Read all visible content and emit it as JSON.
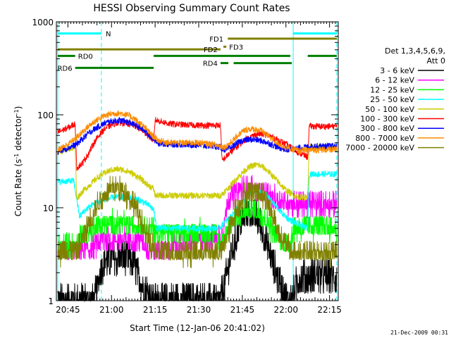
{
  "chart_data": {
    "type": "line",
    "title": "HESSI Observing Summary Count Rates",
    "xlabel": "Start Time (12-Jan-06 20:41:02)",
    "ylabel_main": "Count Rate (s",
    "ylabel_sup1": "-1",
    "ylabel_mid": " detector",
    "ylabel_sup2": "-1",
    "ylabel_end": ")",
    "yscale": "log",
    "ylim": [
      1,
      1000
    ],
    "xlim_min": [
      41.03,
      138.0
    ],
    "x_tick_labels": [
      "20:45",
      "21:00",
      "21:15",
      "21:30",
      "21:45",
      "22:00",
      "22:15"
    ],
    "x_tick_values_min": [
      45,
      60,
      75,
      90,
      105,
      120,
      135
    ],
    "y_tick_labels": [
      "1",
      "10",
      "100",
      "1000"
    ],
    "y_tick_values": [
      1,
      10,
      100,
      1000
    ],
    "footer_date": "21-Dec-2009 00:31",
    "legend": {
      "header1": "Det 1,3,4,5,6,9,",
      "header2": "Att 0",
      "entries": [
        {
          "label": "3 - 6 keV",
          "color": "#000000"
        },
        {
          "label": "6 - 12 keV",
          "color": "#ff00ff"
        },
        {
          "label": "12 - 25 keV",
          "color": "#00ff00"
        },
        {
          "label": "25 - 50 keV",
          "color": "#00ffff"
        },
        {
          "label": "50 - 100 keV",
          "color": "#cccc00"
        },
        {
          "label": "100 - 300 keV",
          "color": "#ff0000"
        },
        {
          "label": "300 - 800 keV",
          "color": "#0000ff"
        },
        {
          "label": "800 - 7000 keV",
          "color": "#ff8c00"
        },
        {
          "label": "7000 - 20000 keV",
          "color": "#808000"
        }
      ]
    },
    "flags": [
      {
        "label": "N",
        "color": "#00ffff",
        "y_level": 750,
        "segments": [
          [
            41.5,
            56.5
          ],
          [
            122.5,
            137.5
          ]
        ],
        "label_at": 57.5,
        "label_side": "right"
      },
      {
        "label": "FD1",
        "color": "#808000",
        "y_level": 660,
        "segments": [
          [
            100,
            137.5
          ]
        ],
        "label_at": 99,
        "label_side": "left"
      },
      {
        "label": "FD2",
        "color": "#808000",
        "y_level": 505,
        "segments": [
          [
            41.5,
            97.5
          ]
        ],
        "label_at": 97,
        "label_side": "left"
      },
      {
        "label": "FD3",
        "color": "#808000",
        "y_level": 540,
        "segments": [
          [
            98.5,
            99.5
          ]
        ],
        "label_at": 100,
        "label_side": "right"
      },
      {
        "label": "RD0",
        "color": "#007f00",
        "y_level": 430,
        "segments": [
          [
            41.5,
            47.5
          ],
          [
            74.5,
            121.5
          ],
          [
            127.5,
            137.5
          ]
        ],
        "label_at": 48,
        "label_side": "right"
      },
      {
        "label": "RD4",
        "color": "#007f00",
        "y_level": 360,
        "segments": [
          [
            97.5,
            100.2
          ],
          [
            102,
            122
          ]
        ],
        "label_at": 97,
        "label_side": "left"
      },
      {
        "label": "RD6",
        "color": "#007f00",
        "y_level": 320,
        "segments": [
          [
            47.5,
            74.5
          ]
        ],
        "label_at": 47,
        "label_side": "left"
      }
    ],
    "vertical_lines": [
      {
        "x": 41.5,
        "color": "#00ffff",
        "style": "solid"
      },
      {
        "x": 56.5,
        "color": "#00ffff",
        "style": "dashed"
      },
      {
        "x": 122.5,
        "color": "#00ffff",
        "style": "solid"
      },
      {
        "x": 137.5,
        "color": "#00ffff",
        "style": "dashed"
      }
    ],
    "series": [
      {
        "name": "3 - 6 keV",
        "color": "#000000",
        "x": [
          41.5,
          54.0,
          55.0,
          56.0,
          57.0,
          58.0,
          60.0,
          62.0,
          64.0,
          66.0,
          68.0,
          70.0,
          72.0,
          74.0,
          75.0,
          97.5,
          99.0,
          101.0,
          103.0,
          105.0,
          107.0,
          109.0,
          111.0,
          113.0,
          115.0,
          117.0,
          119.0,
          120.0,
          121.0,
          122.0,
          123.0,
          125.0,
          128.0,
          131.0,
          134.0,
          137.5
        ],
        "y": [
          1.0,
          1.0,
          1.3,
          2.0,
          2.4,
          2.6,
          2.8,
          2.9,
          2.9,
          2.8,
          2.4,
          1.6,
          1.3,
          1.0,
          1.0,
          1.0,
          1.5,
          3.0,
          5.0,
          7.5,
          9.0,
          8.5,
          6.8,
          4.5,
          2.8,
          1.8,
          1.3,
          1.1,
          1.0,
          1.0,
          1.3,
          1.8,
          1.8,
          1.9,
          1.8,
          1.8
        ]
      },
      {
        "name": "6 - 12 keV",
        "color": "#ff00ff",
        "x": [
          41.5,
          47.0,
          50.0,
          53.0,
          56.0,
          58.0,
          60.0,
          62.0,
          64.0,
          66.0,
          68.0,
          70.0,
          72.0,
          74.0,
          75.5,
          97.5,
          99.0,
          100.0,
          102.0,
          104.0,
          106.0,
          108.0,
          110.0,
          112.0,
          114.0,
          116.0,
          118.0,
          120.0,
          122.0,
          125.0,
          128.0,
          131.0,
          134.0,
          137.5
        ],
        "y": [
          3.3,
          3.4,
          3.4,
          3.6,
          4.4,
          4.6,
          4.5,
          4.6,
          4.5,
          4.6,
          4.5,
          4.6,
          3.8,
          3.4,
          3.4,
          5.0,
          7.5,
          12.5,
          13.5,
          15.5,
          16.5,
          16.2,
          15.5,
          14.5,
          13.0,
          12.5,
          12.0,
          11.5,
          11.0,
          11.0,
          11.0,
          10.9,
          11.0,
          11.0
        ]
      },
      {
        "name": "12 - 25 keV",
        "color": "#00ff00",
        "x": [
          41.5,
          48.0,
          49.0,
          51.0,
          53.0,
          55.0,
          57.0,
          59.0,
          61.0,
          63.0,
          65.0,
          67.0,
          69.0,
          71.0,
          73.0,
          74.5,
          75.0,
          82.0,
          90.0,
          95.0,
          97.5,
          99.0,
          101.0,
          103.0,
          105.0,
          107.0,
          109.0,
          111.0,
          113.0,
          115.0,
          117.0,
          119.0,
          121.0,
          122.5,
          126.0,
          130.0,
          134.0,
          137.5
        ],
        "y": [
          3.8,
          3.9,
          5.0,
          5.2,
          6.0,
          6.3,
          6.5,
          6.8,
          6.8,
          6.8,
          6.7,
          6.6,
          6.5,
          6.3,
          6.0,
          5.9,
          5.5,
          5.5,
          5.5,
          5.6,
          4.2,
          5.0,
          6.5,
          7.5,
          8.5,
          9.5,
          9.5,
          9.0,
          7.5,
          6.0,
          5.0,
          4.2,
          3.8,
          6.0,
          6.0,
          6.2,
          6.0,
          6.0
        ]
      },
      {
        "name": "25 - 50 keV",
        "color": "#00ffff",
        "x": [
          41.5,
          47.0,
          49.0,
          51.0,
          53.0,
          55.0,
          57.0,
          59.0,
          61.0,
          63.0,
          65.0,
          67.0,
          69.0,
          71.0,
          73.0,
          74.5,
          75.5,
          82.0,
          89.0,
          94.0,
          97.0,
          99.0,
          101.0,
          103.0,
          105.0,
          107.0,
          109.0,
          111.0,
          113.0,
          115.0,
          117.0,
          119.0,
          121.0,
          123.0,
          125.0,
          127.5,
          128.0,
          132.0,
          137.5
        ],
        "y": [
          19.0,
          19.5,
          8.0,
          9.5,
          10.5,
          11.5,
          12.0,
          12.5,
          13.0,
          13.0,
          13.0,
          12.8,
          12.3,
          11.5,
          10.5,
          9.5,
          6.0,
          6.0,
          6.0,
          6.0,
          6.0,
          7.0,
          8.0,
          9.5,
          11.5,
          13.5,
          15.0,
          15.0,
          14.0,
          12.0,
          10.0,
          8.5,
          7.5,
          7.0,
          6.5,
          6.0,
          23.0,
          23.0,
          23.0
        ]
      },
      {
        "name": "50 - 100 keV",
        "color": "#cccc00",
        "x": [
          41.5,
          47.5,
          48.0,
          50.0,
          52.0,
          54.0,
          56.0,
          58.0,
          60.0,
          62.0,
          64.0,
          66.0,
          68.0,
          70.0,
          72.0,
          74.5,
          75.0,
          82.0,
          89.0,
          94.0,
          97.5,
          98.0,
          100.0,
          102.0,
          104.0,
          106.0,
          108.0,
          110.0,
          112.0,
          114.0,
          116.0,
          118.0,
          120.0,
          122.0,
          124.0,
          126.0,
          127.5,
          128.0,
          132.0,
          137.5
        ],
        "y": [
          40.0,
          45.0,
          12.5,
          15.0,
          17.0,
          19.5,
          22.0,
          24.0,
          25.5,
          26.0,
          25.5,
          24.5,
          22.5,
          20.5,
          18.0,
          16.0,
          13.5,
          13.5,
          13.5,
          13.5,
          13.5,
          14.0,
          16.0,
          19.0,
          22.0,
          25.5,
          28.0,
          29.0,
          27.5,
          24.5,
          21.0,
          18.0,
          15.5,
          14.0,
          13.0,
          13.0,
          13.0,
          45.0,
          45.0,
          45.0
        ]
      },
      {
        "name": "100 - 300 keV",
        "color": "#ff0000",
        "x": [
          41.5,
          44.0,
          46.0,
          47.5,
          48.0,
          50.0,
          52.0,
          54.0,
          56.0,
          58.0,
          60.0,
          62.0,
          64.0,
          66.0,
          68.0,
          70.0,
          72.0,
          74.0,
          74.5,
          75.0,
          80.0,
          85.0,
          90.0,
          95.0,
          97.5,
          98.0,
          100.0,
          102.0,
          104.0,
          106.0,
          108.0,
          110.0,
          112.0,
          114.0,
          116.0,
          118.0,
          120.0,
          122.0,
          124.0,
          126.0,
          127.5,
          128.0,
          132.0,
          137.5
        ],
        "y": [
          65.0,
          70.0,
          75.0,
          80.0,
          27.0,
          30.0,
          38.0,
          50.0,
          62.0,
          72.0,
          78.0,
          82.0,
          82.0,
          80.0,
          76.0,
          70.0,
          62.0,
          55.0,
          50.0,
          88.0,
          80.0,
          78.0,
          77.0,
          77.0,
          77.0,
          32.0,
          37.0,
          42.0,
          48.0,
          54.0,
          58.0,
          62.0,
          62.0,
          60.0,
          56.0,
          52.0,
          48.0,
          44.0,
          40.0,
          37.0,
          35.0,
          75.0,
          75.0,
          75.0
        ]
      },
      {
        "name": "300 - 800 keV",
        "color": "#0000ff",
        "x": [
          41.5,
          45.0,
          48.0,
          50.0,
          52.0,
          54.0,
          56.0,
          58.0,
          60.0,
          62.0,
          64.0,
          66.0,
          68.0,
          70.0,
          72.0,
          74.0,
          76.0,
          80.0,
          85.0,
          90.0,
          95.0,
          97.0,
          99.0,
          101.0,
          103.0,
          105.0,
          107.0,
          109.0,
          111.0,
          113.0,
          115.0,
          117.0,
          119.0,
          121.0,
          123.0,
          125.0,
          127.0,
          130.0,
          134.0,
          137.5
        ],
        "y": [
          40.0,
          44.0,
          48.0,
          55.0,
          63.0,
          70.0,
          76.0,
          82.0,
          85.0,
          87.0,
          86.0,
          83.0,
          78.0,
          72.0,
          65.0,
          56.0,
          50.0,
          48.0,
          48.0,
          47.0,
          46.0,
          45.0,
          42.0,
          44.0,
          49.0,
          53.0,
          54.0,
          54.0,
          53.0,
          51.0,
          48.0,
          45.0,
          43.0,
          42.0,
          43.0,
          44.0,
          45.0,
          46.0,
          46.0,
          46.0
        ]
      },
      {
        "name": "800 - 7000 keV",
        "color": "#ff8c00",
        "x": [
          41.5,
          45.0,
          48.0,
          50.0,
          52.0,
          54.0,
          56.0,
          58.0,
          60.0,
          62.0,
          64.0,
          66.0,
          68.0,
          70.0,
          72.0,
          74.0,
          76.0,
          80.0,
          85.0,
          90.0,
          95.0,
          97.0,
          99.0,
          101.0,
          103.0,
          105.0,
          107.0,
          109.0,
          111.0,
          113.0,
          115.0,
          117.0,
          119.0,
          121.0,
          123.0,
          125.0,
          127.0,
          130.0,
          134.0,
          137.5
        ],
        "y": [
          42.0,
          48.0,
          57.0,
          65.0,
          75.0,
          84.0,
          92.0,
          98.0,
          103.0,
          104.0,
          103.0,
          98.0,
          90.0,
          80.0,
          70.0,
          60.0,
          53.0,
          50.0,
          50.0,
          50.0,
          48.0,
          46.0,
          45.0,
          50.0,
          58.0,
          66.0,
          70.0,
          70.0,
          68.0,
          63.0,
          56.0,
          50.0,
          46.0,
          43.0,
          42.0,
          41.0,
          42.0,
          42.0,
          42.0,
          42.0
        ]
      },
      {
        "name": "7000 - 20000 keV",
        "color": "#808000",
        "x": [
          41.5,
          45.0,
          48.0,
          50.0,
          52.0,
          54.0,
          56.0,
          58.0,
          60.0,
          62.0,
          64.0,
          66.0,
          68.0,
          70.0,
          72.0,
          74.0,
          75.0,
          80.0,
          85.0,
          90.0,
          95.0,
          97.5,
          99.0,
          101.0,
          103.0,
          105.0,
          107.0,
          109.0,
          111.0,
          113.0,
          115.0,
          117.0,
          119.0,
          121.0,
          122.0,
          126.0,
          130.0,
          134.0,
          137.5
        ],
        "y": [
          3.3,
          3.4,
          3.5,
          4.5,
          6.5,
          9.0,
          12.0,
          14.5,
          16.0,
          16.5,
          15.5,
          13.0,
          10.5,
          7.5,
          5.0,
          3.8,
          3.4,
          3.3,
          3.3,
          3.3,
          3.3,
          3.3,
          4.0,
          6.5,
          9.5,
          12.5,
          15.0,
          15.5,
          14.5,
          12.0,
          9.0,
          6.0,
          4.5,
          3.6,
          3.3,
          3.3,
          3.3,
          3.3,
          3.3
        ]
      }
    ]
  }
}
